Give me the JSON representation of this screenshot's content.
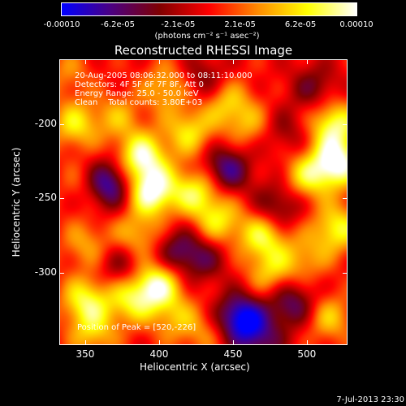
{
  "colorbar": {
    "tick_labels": [
      "-0.00010",
      "-6.2e-05",
      "-2.1e-05",
      "2.1e-05",
      "6.2e-05",
      "0.00010"
    ],
    "tick_values": [
      -0.0001,
      -6.2e-05,
      -2.1e-05,
      2.1e-05,
      6.2e-05,
      0.0001
    ],
    "unit_label": "(photons cm⁻² s⁻¹ asec⁻²)",
    "colors": [
      "#0000ff",
      "#4b0082",
      "#800000",
      "#ff0000",
      "#ff8c00",
      "#ffff00",
      "#ffffff"
    ]
  },
  "title": "Reconstructed RHESSI Image",
  "info": {
    "time_range": "20-Aug-2005 08:06:32.000 to 08:11:10.000",
    "detectors": "Detectors: 4F 5F 6F 7F 8F, Att 0",
    "energy": "Energy Range: 25.0 - 50.0 keV",
    "clean": "Clean    Total counts: 3.80E+03",
    "peak": "Position of Peak = [520,-226]"
  },
  "stamp": "7-Jul-2013 23:30",
  "chart_data": {
    "type": "heatmap",
    "title": "Reconstructed RHESSI Image",
    "xlabel": "Heliocentric X (arcsec)",
    "ylabel": "Heliocentric Y (arcsec)",
    "xlim": [
      333,
      527
    ],
    "ylim": [
      -348,
      -157
    ],
    "x_ticks": [
      350,
      400,
      450,
      500
    ],
    "y_ticks": [
      -200,
      -250,
      -300
    ],
    "x_tick_labels": [
      "350",
      "400",
      "450",
      "500"
    ],
    "y_tick_labels": [
      "-200",
      "-250",
      "-300"
    ],
    "value_range": [
      -0.0001,
      0.0001
    ],
    "peak_position": [
      520,
      -226
    ],
    "blobs": [
      {
        "x": 343,
        "y": -200,
        "v": 6e-05
      },
      {
        "x": 350,
        "y": -280,
        "v": 4e-05
      },
      {
        "x": 350,
        "y": -318,
        "v": 7e-05
      },
      {
        "x": 355,
        "y": -340,
        "v": 5e-05
      },
      {
        "x": 365,
        "y": -240,
        "v": -9e-05
      },
      {
        "x": 372,
        "y": -195,
        "v": 4e-05
      },
      {
        "x": 388,
        "y": -222,
        "v": 9e-05
      },
      {
        "x": 395,
        "y": -245,
        "v": 0.0001
      },
      {
        "x": 385,
        "y": -275,
        "v": 5e-05
      },
      {
        "x": 398,
        "y": -308,
        "v": 9e-05
      },
      {
        "x": 380,
        "y": -318,
        "v": 6e-05
      },
      {
        "x": 410,
        "y": -330,
        "v": 4e-05
      },
      {
        "x": 405,
        "y": -175,
        "v": 5e-05
      },
      {
        "x": 420,
        "y": -205,
        "v": 6e-05
      },
      {
        "x": 425,
        "y": -245,
        "v": 7e-05
      },
      {
        "x": 430,
        "y": -290,
        "v": -4e-05
      },
      {
        "x": 445,
        "y": -185,
        "v": 5e-05
      },
      {
        "x": 445,
        "y": -230,
        "v": -7e-05
      },
      {
        "x": 440,
        "y": -265,
        "v": 6e-05
      },
      {
        "x": 455,
        "y": -330,
        "v": -0.0001
      },
      {
        "x": 470,
        "y": -275,
        "v": 7e-05
      },
      {
        "x": 475,
        "y": -300,
        "v": 5e-05
      },
      {
        "x": 480,
        "y": -255,
        "v": -5e-05
      },
      {
        "x": 490,
        "y": -320,
        "v": -6e-05
      },
      {
        "x": 500,
        "y": -235,
        "v": 6e-05
      },
      {
        "x": 505,
        "y": -175,
        "v": -4e-05
      },
      {
        "x": 498,
        "y": -290,
        "v": 4e-05
      },
      {
        "x": 520,
        "y": -226,
        "v": 0.0001
      },
      {
        "x": 518,
        "y": -200,
        "v": 8e-05
      },
      {
        "x": 520,
        "y": -270,
        "v": 7e-05
      },
      {
        "x": 515,
        "y": -330,
        "v": 5e-05
      },
      {
        "x": 338,
        "y": -165,
        "v": 3e-05
      },
      {
        "x": 430,
        "y": -170,
        "v": -4e-05
      },
      {
        "x": 350,
        "y": -240,
        "v": 3e-05
      },
      {
        "x": 460,
        "y": -200,
        "v": 4e-05
      },
      {
        "x": 412,
        "y": -285,
        "v": -5e-05
      },
      {
        "x": 375,
        "y": -295,
        "v": -4e-05
      },
      {
        "x": 430,
        "y": -340,
        "v": 3e-05
      },
      {
        "x": 468,
        "y": -345,
        "v": -5e-05
      },
      {
        "x": 485,
        "y": -205,
        "v": -3e-05
      }
    ]
  }
}
